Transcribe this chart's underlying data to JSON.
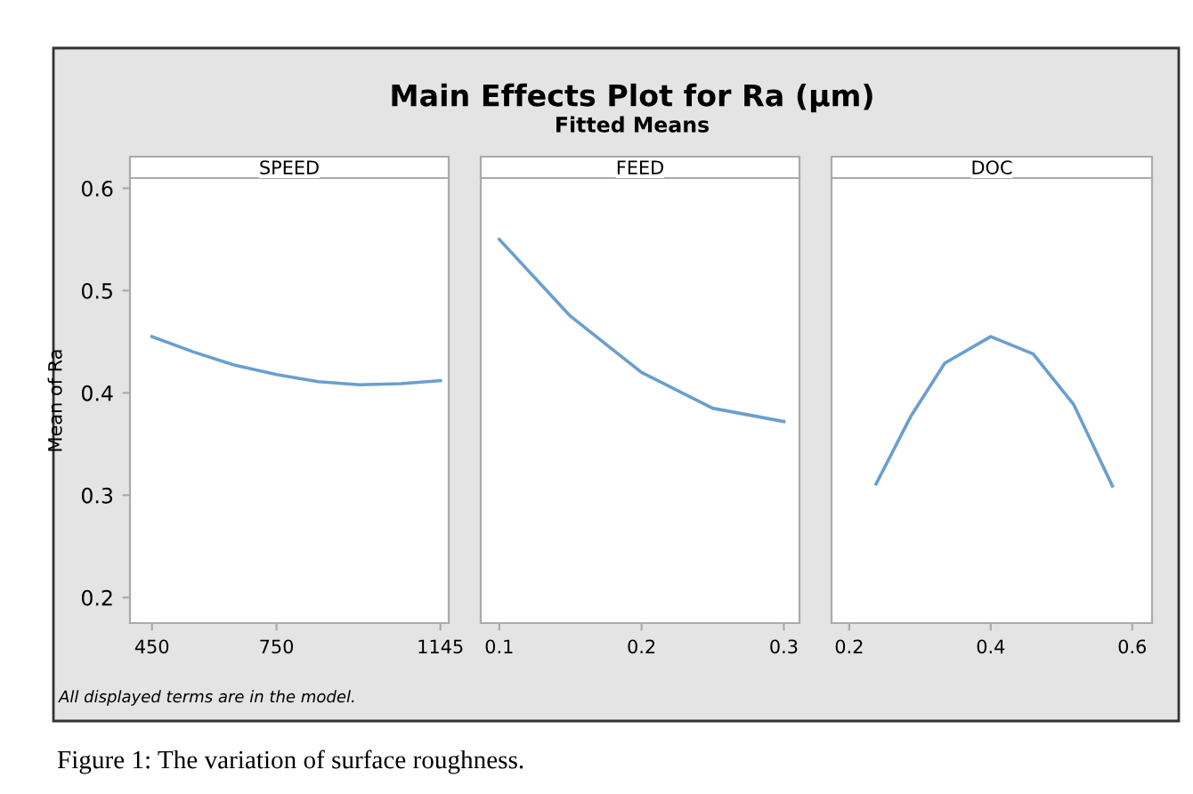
{
  "chart_data": [
    {
      "type": "line",
      "title": "SPEED",
      "ylabel": "Mean of Ra",
      "color": "#6a9fcf",
      "annotations": [
        "Main Effects Plot for Ra (µm)",
        "Fitted Means",
        "All displayed terms are in the model.",
        "Figure 1: The variation of surface roughness."
      ],
      "x": [
        450,
        550,
        650,
        750,
        850,
        950,
        1050,
        1145
      ],
      "values": [
        0.455,
        0.44,
        0.427,
        0.418,
        0.411,
        0.408,
        0.409,
        0.412
      ],
      "xlim": [
        397,
        1165
      ],
      "xticks": [
        450,
        750,
        1145
      ],
      "ylim": [
        0.175,
        0.61
      ],
      "yticks": [
        0.2,
        0.3,
        0.4,
        0.5,
        0.6
      ],
      "grid": false
    },
    {
      "type": "line",
      "title": "FEED",
      "color": "#6a9fcf",
      "x": [
        0.1,
        0.15,
        0.2,
        0.25,
        0.3
      ],
      "values": [
        0.55,
        0.475,
        0.42,
        0.385,
        0.372
      ],
      "xlim": [
        0.087,
        0.311
      ],
      "xticks": [
        0.1,
        0.2,
        0.3
      ],
      "ylim": [
        0.175,
        0.61
      ],
      "tick_labels": "x",
      "grid": false
    },
    {
      "type": "line",
      "title": "DOC",
      "color": "#6a9fcf",
      "x": [
        0.238,
        0.287,
        0.335,
        0.4,
        0.46,
        0.517,
        0.572
      ],
      "values": [
        0.311,
        0.377,
        0.429,
        0.455,
        0.438,
        0.389,
        0.309
      ],
      "xlim": [
        0.175,
        0.628
      ],
      "xticks": [
        0.2,
        0.4,
        0.6
      ],
      "ylim": [
        0.175,
        0.61
      ],
      "tick_labels": "x",
      "grid": false
    }
  ]
}
